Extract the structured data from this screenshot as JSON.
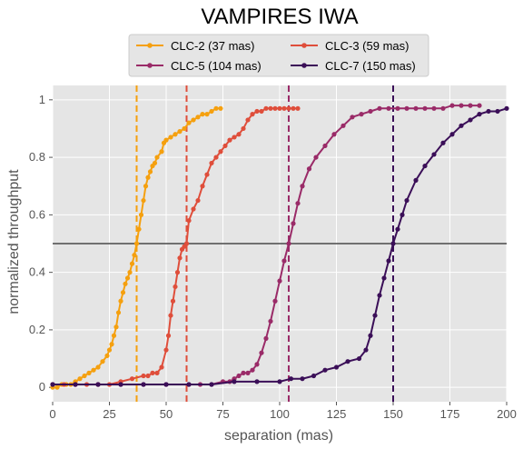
{
  "chart_data": {
    "type": "line",
    "title": "VAMPIRES IWA",
    "xlabel": "separation (mas)",
    "ylabel": "normalized throughput",
    "xlim": [
      0,
      200
    ],
    "ylim": [
      -0.05,
      1.05
    ],
    "xticks": [
      0,
      25,
      50,
      75,
      100,
      125,
      150,
      175,
      200
    ],
    "yticks": [
      0,
      0.2,
      0.4,
      0.6,
      0.8,
      1
    ],
    "grid": true,
    "legend": {
      "placement": "top-center",
      "columns": 2
    },
    "threshold_line": {
      "y": 0.5,
      "color": "#5f5f5f"
    },
    "series": [
      {
        "name": "CLC-2 (37 mas)",
        "color": "#f5a00f",
        "iwa": 37,
        "x": [
          0,
          2,
          4,
          6,
          8,
          10,
          12,
          14,
          16,
          18,
          20,
          22,
          24,
          25,
          26,
          27,
          28,
          29,
          30,
          31,
          32,
          33,
          34,
          35,
          36,
          37,
          38,
          39,
          40,
          41,
          42,
          43,
          44,
          45,
          46,
          48,
          49,
          50,
          52,
          54,
          56,
          58,
          60,
          62,
          64,
          66,
          68,
          70,
          72,
          74
        ],
        "y": [
          0.0,
          0.0,
          0.01,
          0.01,
          0.01,
          0.02,
          0.03,
          0.04,
          0.05,
          0.06,
          0.07,
          0.09,
          0.11,
          0.13,
          0.15,
          0.18,
          0.21,
          0.26,
          0.3,
          0.33,
          0.36,
          0.38,
          0.4,
          0.43,
          0.46,
          0.5,
          0.55,
          0.6,
          0.65,
          0.7,
          0.73,
          0.75,
          0.77,
          0.78,
          0.8,
          0.82,
          0.85,
          0.86,
          0.87,
          0.88,
          0.89,
          0.9,
          0.92,
          0.93,
          0.94,
          0.95,
          0.95,
          0.96,
          0.97,
          0.97
        ]
      },
      {
        "name": "CLC-3 (59 mas)",
        "color": "#df4e3b",
        "iwa": 59,
        "x": [
          0,
          5,
          10,
          15,
          20,
          25,
          30,
          35,
          40,
          42,
          44,
          46,
          48,
          50,
          51,
          52,
          53,
          54,
          55,
          56,
          57,
          58,
          59,
          60,
          62,
          64,
          66,
          68,
          70,
          72,
          74,
          76,
          78,
          80,
          82,
          84,
          86,
          88,
          90,
          92,
          94,
          96,
          98,
          100,
          102,
          104,
          106,
          108
        ],
        "y": [
          0.01,
          0.01,
          0.01,
          0.01,
          0.01,
          0.01,
          0.02,
          0.03,
          0.04,
          0.04,
          0.05,
          0.05,
          0.07,
          0.13,
          0.18,
          0.25,
          0.3,
          0.35,
          0.4,
          0.45,
          0.48,
          0.49,
          0.5,
          0.58,
          0.62,
          0.65,
          0.7,
          0.74,
          0.78,
          0.8,
          0.82,
          0.84,
          0.86,
          0.87,
          0.88,
          0.9,
          0.93,
          0.95,
          0.96,
          0.96,
          0.97,
          0.97,
          0.97,
          0.97,
          0.97,
          0.97,
          0.97,
          0.97
        ]
      },
      {
        "name": "CLC-5 (104 mas)",
        "color": "#9a2b68",
        "iwa": 104,
        "x": [
          0,
          10,
          20,
          30,
          40,
          50,
          60,
          65,
          70,
          75,
          78,
          80,
          82,
          84,
          86,
          88,
          90,
          92,
          94,
          96,
          98,
          100,
          102,
          104,
          106,
          108,
          110,
          113,
          116,
          120,
          124,
          128,
          132,
          136,
          140,
          144,
          148,
          152,
          156,
          160,
          164,
          168,
          172,
          176,
          180,
          184,
          188
        ],
        "y": [
          0.01,
          0.01,
          0.01,
          0.01,
          0.01,
          0.01,
          0.01,
          0.01,
          0.01,
          0.02,
          0.02,
          0.03,
          0.04,
          0.05,
          0.05,
          0.06,
          0.08,
          0.12,
          0.17,
          0.23,
          0.3,
          0.37,
          0.44,
          0.5,
          0.57,
          0.64,
          0.7,
          0.76,
          0.8,
          0.84,
          0.88,
          0.91,
          0.94,
          0.95,
          0.96,
          0.97,
          0.97,
          0.97,
          0.97,
          0.97,
          0.97,
          0.97,
          0.97,
          0.98,
          0.98,
          0.98,
          0.98
        ]
      },
      {
        "name": "CLC-7 (150 mas)",
        "color": "#3b0f58",
        "iwa": 150,
        "x": [
          0,
          10,
          20,
          30,
          40,
          50,
          60,
          70,
          80,
          90,
          100,
          105,
          110,
          115,
          120,
          125,
          130,
          135,
          138,
          140,
          142,
          144,
          146,
          148,
          150,
          152,
          154,
          156,
          160,
          164,
          168,
          172,
          176,
          180,
          184,
          188,
          192,
          196,
          200
        ],
        "y": [
          0.01,
          0.01,
          0.01,
          0.01,
          0.01,
          0.01,
          0.01,
          0.01,
          0.02,
          0.02,
          0.02,
          0.03,
          0.03,
          0.04,
          0.06,
          0.07,
          0.09,
          0.1,
          0.13,
          0.18,
          0.25,
          0.32,
          0.38,
          0.44,
          0.5,
          0.55,
          0.6,
          0.65,
          0.72,
          0.77,
          0.81,
          0.85,
          0.88,
          0.91,
          0.93,
          0.95,
          0.96,
          0.96,
          0.97
        ]
      }
    ]
  }
}
